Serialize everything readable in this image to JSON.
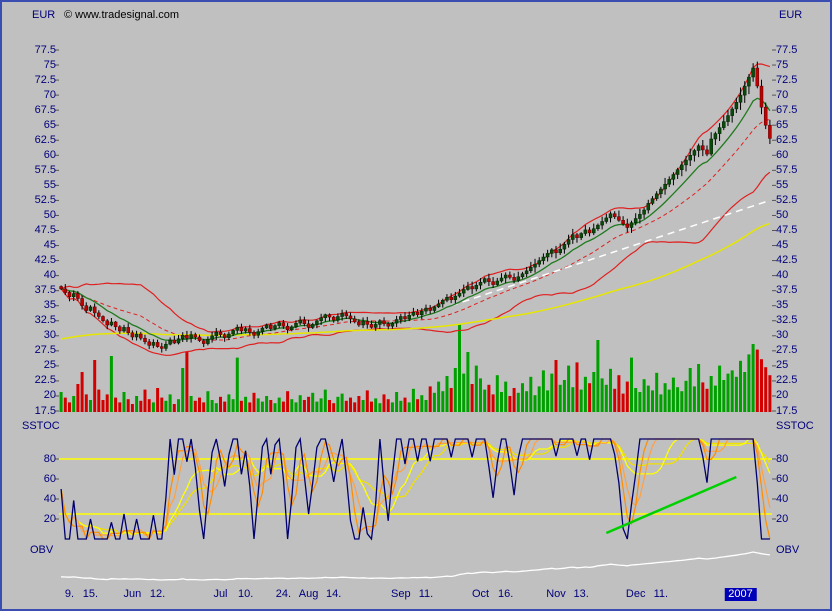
{
  "meta": {
    "copyright": "© www.tradesignal.com"
  },
  "axes": {
    "price": {
      "unit": "EUR",
      "tick_values": [
        77.5,
        75,
        72.5,
        70,
        67.5,
        65,
        62.5,
        60,
        57.5,
        55,
        52.5,
        50,
        47.5,
        45,
        42.5,
        40,
        37.5,
        35,
        32.5,
        30,
        27.5,
        25,
        22.5,
        20,
        17.5
      ]
    },
    "sstoc": {
      "label": "SSTOC",
      "tick_values": [
        80,
        60,
        40,
        20
      ],
      "threshold_lines": [
        80,
        25
      ]
    },
    "obv": {
      "label": "OBV"
    }
  },
  "x_axis": {
    "labels": [
      {
        "text": "9.",
        "bar": 2
      },
      {
        "text": "15.",
        "bar": 7
      },
      {
        "text": "Jun",
        "bar": 17
      },
      {
        "text": "12.",
        "bar": 23
      },
      {
        "text": "Jul",
        "bar": 38
      },
      {
        "text": "10.",
        "bar": 44
      },
      {
        "text": "24.",
        "bar": 53
      },
      {
        "text": "Aug",
        "bar": 59
      },
      {
        "text": "14.",
        "bar": 65
      },
      {
        "text": "Sep",
        "bar": 81
      },
      {
        "text": "11.",
        "bar": 87
      },
      {
        "text": "Oct",
        "bar": 100
      },
      {
        "text": "16.",
        "bar": 106
      },
      {
        "text": "Nov",
        "bar": 118
      },
      {
        "text": "13.",
        "bar": 124
      },
      {
        "text": "Dec",
        "bar": 137
      },
      {
        "text": "11.",
        "bar": 143
      },
      {
        "text": "2007",
        "bar": 162,
        "highlight": true
      }
    ]
  },
  "chart_data": {
    "type": "candlestick",
    "currency": "EUR",
    "price_axis_range": [
      17.5,
      77.5
    ],
    "bar_count": 170,
    "closes": [
      37.8,
      37.2,
      36.5,
      37.0,
      36.2,
      35.0,
      34.2,
      34.8,
      33.8,
      33.2,
      32.5,
      31.8,
      32.3,
      31.5,
      30.8,
      31.4,
      30.5,
      29.8,
      30.3,
      29.6,
      29.0,
      28.4,
      28.9,
      28.2,
      27.9,
      28.6,
      29.3,
      28.8,
      29.5,
      30.1,
      29.6,
      30.2,
      29.8,
      29.2,
      28.7,
      29.4,
      30.0,
      30.6,
      30.2,
      29.7,
      30.3,
      30.9,
      31.4,
      30.8,
      31.2,
      30.6,
      30.1,
      30.7,
      31.3,
      31.8,
      31.2,
      31.7,
      32.2,
      31.6,
      31.0,
      31.5,
      32.1,
      32.6,
      32.0,
      31.4,
      31.9,
      32.5,
      33.0,
      33.5,
      33.1,
      32.6,
      33.2,
      33.7,
      33.3,
      32.8,
      32.3,
      31.8,
      32.4,
      31.9,
      31.4,
      31.9,
      32.5,
      32.0,
      31.6,
      32.1,
      32.7,
      33.2,
      32.8,
      33.4,
      33.9,
      33.5,
      34.1,
      34.6,
      34.2,
      34.8,
      35.3,
      35.9,
      36.4,
      36.0,
      36.6,
      37.1,
      37.7,
      38.2,
      37.8,
      38.4,
      38.9,
      39.5,
      39.0,
      38.5,
      39.1,
      39.6,
      40.1,
      39.7,
      39.2,
      39.8,
      40.3,
      40.8,
      41.4,
      41.9,
      42.5,
      43.1,
      43.7,
      44.3,
      43.8,
      44.4,
      45.2,
      46.0,
      46.8,
      46.3,
      47.0,
      47.6,
      47.1,
      47.8,
      48.4,
      49.0,
      49.6,
      50.3,
      49.8,
      49.2,
      48.6,
      48.0,
      48.8,
      49.5,
      50.2,
      50.9,
      52.0,
      52.8,
      53.6,
      54.4,
      55.2,
      56.0,
      56.8,
      57.6,
      58.4,
      59.2,
      60.0,
      60.8,
      61.6,
      60.9,
      60.2,
      62.7,
      63.6,
      64.6,
      65.6,
      66.6,
      67.7,
      68.8,
      70.0,
      71.5,
      73.0,
      74.5,
      71.5,
      68.0,
      65.0,
      62.8
    ],
    "volumes": [
      2.5,
      1.8,
      1.2,
      2.0,
      3.5,
      5.0,
      2.2,
      1.5,
      6.5,
      2.8,
      1.5,
      2.2,
      7.0,
      1.8,
      1.2,
      2.5,
      1.6,
      1.0,
      2.0,
      1.4,
      2.8,
      1.6,
      1.2,
      3.0,
      1.8,
      1.4,
      2.2,
      1.0,
      1.6,
      5.5,
      7.5,
      2.0,
      1.4,
      1.8,
      1.2,
      2.6,
      1.5,
      1.1,
      1.9,
      1.3,
      2.2,
      1.6,
      6.8,
      1.4,
      1.9,
      1.2,
      2.4,
      1.7,
      1.3,
      2.0,
      1.5,
      1.1,
      1.8,
      1.3,
      2.6,
      1.6,
      1.2,
      2.1,
      1.5,
      1.9,
      2.4,
      1.3,
      1.7,
      2.8,
      1.5,
      1.1,
      1.9,
      2.3,
      1.4,
      1.8,
      1.2,
      2.0,
      1.5,
      2.7,
      1.3,
      1.7,
      1.1,
      2.2,
      1.6,
      1.2,
      2.5,
      1.4,
      1.8,
      1.2,
      2.9,
      1.6,
      2.1,
      1.5,
      3.2,
      2.4,
      3.8,
      2.6,
      4.5,
      3.0,
      5.5,
      11.0,
      4.8,
      7.5,
      3.5,
      5.8,
      4.2,
      2.8,
      3.4,
      2.2,
      4.6,
      2.5,
      3.8,
      2.0,
      3.0,
      2.4,
      3.6,
      2.6,
      4.4,
      2.1,
      3.2,
      5.2,
      2.7,
      4.8,
      6.5,
      3.4,
      4.0,
      5.8,
      3.1,
      6.2,
      2.8,
      4.4,
      3.6,
      5.0,
      9.0,
      4.2,
      3.4,
      5.4,
      2.9,
      4.6,
      2.3,
      3.8,
      6.8,
      3.0,
      2.5,
      4.1,
      3.3,
      2.7,
      4.9,
      2.2,
      3.6,
      2.8,
      4.3,
      3.1,
      2.6,
      3.9,
      5.5,
      3.2,
      6.0,
      3.7,
      2.9,
      4.5,
      3.3,
      5.8,
      4.0,
      4.8,
      5.2,
      4.4,
      6.4,
      5.0,
      7.2,
      8.5,
      7.8,
      6.6,
      5.6,
      4.6
    ],
    "overlays": [
      {
        "name": "bollinger-upper",
        "color": "#e02020",
        "style": "solid"
      },
      {
        "name": "bollinger-lower",
        "color": "#e02020",
        "style": "solid"
      },
      {
        "name": "bollinger-mid",
        "color": "#e02020",
        "style": "dashed"
      },
      {
        "name": "ema-fast",
        "color": "#1f7a1f",
        "style": "solid"
      },
      {
        "name": "long-ma",
        "color": "#e6e600",
        "style": "solid"
      },
      {
        "name": "trendline",
        "color": "#ffffff",
        "style": "dashed"
      }
    ],
    "indicators": {
      "sstoc": {
        "period": 7,
        "thresholds": [
          25,
          80
        ]
      },
      "obv": {}
    },
    "annotations": {
      "price_trendline": {
        "bar1": 93,
        "price1": 35.0,
        "bar2": 169,
        "price2": 52.5,
        "color": "#ffffff",
        "style": "dashed"
      },
      "sstoc_trendline": {
        "bar1": 130,
        "value1": 6,
        "bar2": 161,
        "value2": 62,
        "color": "#00d000",
        "style": "solid"
      }
    }
  },
  "colors": {
    "background": "#c0c0c0",
    "frame": "#3b4db0",
    "axis_text": "#00007b",
    "candle_up": "#0a4a0a",
    "candle_down": "#c00000",
    "volume_up": "#00a000",
    "volume_down": "#d40000",
    "bollinger": "#e02020",
    "ema_fast": "#1f7a1f",
    "ma_slow": "#e6e600",
    "trend_white": "#ffffff",
    "sstoc_k": "#00006e",
    "sstoc_d": "#ff8c00",
    "sstoc_d2": "#ffa040",
    "sstoc_slow1": "#ffff00",
    "sstoc_slow2": "#f0e000",
    "threshold": "#ffff00",
    "sstoc_trend": "#00d000",
    "obv_line": "#ffffff",
    "year_bg": "#0000b8",
    "year_fg": "#ffffff"
  }
}
